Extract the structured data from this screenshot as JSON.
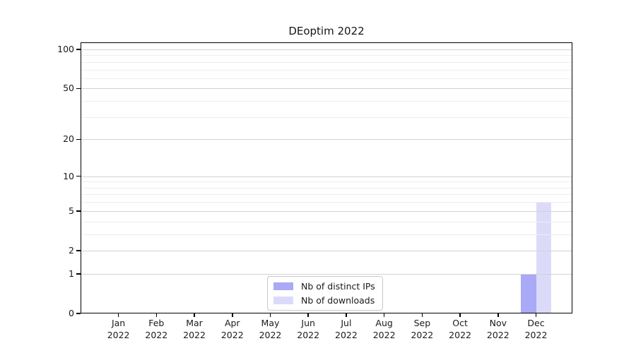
{
  "title": "DEoptim 2022",
  "chart_data": {
    "type": "bar",
    "title": "DEoptim 2022",
    "x_categories": [
      {
        "month": "Jan",
        "year": "2022"
      },
      {
        "month": "Feb",
        "year": "2022"
      },
      {
        "month": "Mar",
        "year": "2022"
      },
      {
        "month": "Apr",
        "year": "2022"
      },
      {
        "month": "May",
        "year": "2022"
      },
      {
        "month": "Jun",
        "year": "2022"
      },
      {
        "month": "Jul",
        "year": "2022"
      },
      {
        "month": "Aug",
        "year": "2022"
      },
      {
        "month": "Sep",
        "year": "2022"
      },
      {
        "month": "Oct",
        "year": "2022"
      },
      {
        "month": "Nov",
        "year": "2022"
      },
      {
        "month": "Dec",
        "year": "2022"
      }
    ],
    "series": [
      {
        "name": "Nb of distinct IPs",
        "color": "#a9a9f7",
        "values": [
          0,
          0,
          0,
          0,
          0,
          0,
          0,
          0,
          0,
          0,
          0,
          1
        ]
      },
      {
        "name": "Nb of downloads",
        "color": "#dbdbf9",
        "values": [
          0,
          0,
          0,
          0,
          0,
          0,
          0,
          0,
          0,
          0,
          0,
          6
        ]
      }
    ],
    "yscale": "log1p",
    "ylim": [
      0,
      113
    ],
    "yticks": [
      {
        "value": 0,
        "label": "0"
      },
      {
        "value": 1,
        "label": "1"
      },
      {
        "value": 2,
        "label": "2"
      },
      {
        "value": 5,
        "label": "5"
      },
      {
        "value": 10,
        "label": "10"
      },
      {
        "value": 20,
        "label": "20"
      },
      {
        "value": 50,
        "label": "50"
      },
      {
        "value": 100,
        "label": "100"
      }
    ],
    "grid": {
      "major_values": [
        1,
        2,
        5,
        10,
        20,
        50,
        100
      ],
      "minor_values": [
        3,
        4,
        6,
        7,
        8,
        9,
        30,
        40,
        60,
        70,
        80,
        90
      ]
    },
    "legend_position": "lower center"
  },
  "colors": {
    "frame": "#000000",
    "grid_major": "#d2d2d2",
    "grid_minor": "#eeeeee",
    "background": "#ffffff",
    "text": "#1a1a1a"
  }
}
